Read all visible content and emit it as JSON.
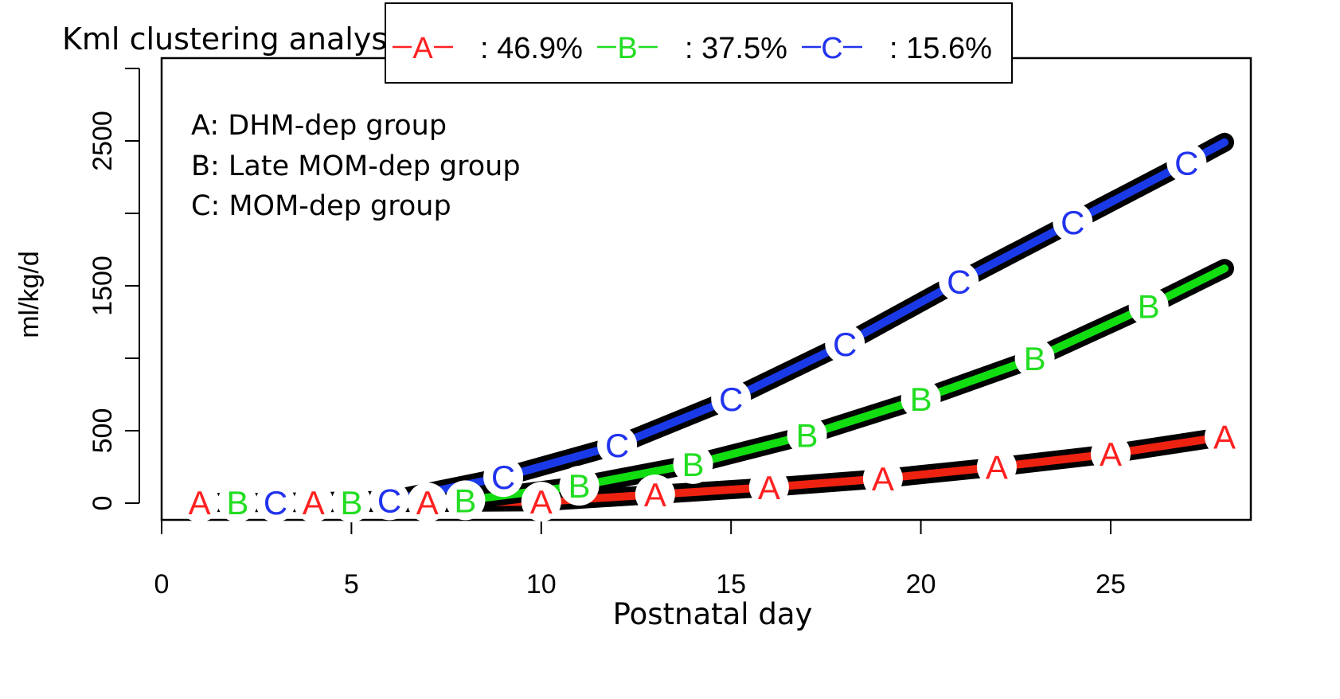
{
  "chart_data": {
    "type": "line",
    "title": "Kml clustering analysis",
    "xlabel": "Postnatal day",
    "ylabel": "ml/kg/d",
    "xlim": [
      0,
      28
    ],
    "ylim": [
      0,
      3000
    ],
    "xticks": [
      0,
      5,
      10,
      15,
      20,
      25
    ],
    "yticks": [
      0,
      500,
      1000,
      1500,
      2000,
      2500,
      3000
    ],
    "ytick_labels": [
      "0",
      "500",
      "",
      "1500",
      "",
      "2500",
      ""
    ],
    "grid": false,
    "annotations": [
      "A: DHM-dep group",
      "B: Late MOM-dep group",
      "C: MOM-dep group"
    ],
    "legend": {
      "placement": "top",
      "entries": [
        {
          "symbol": "A",
          "label": ": 46.9%",
          "color": "#ff2020"
        },
        {
          "symbol": "B",
          "label": ": 37.5%",
          "color": "#22dd22"
        },
        {
          "symbol": "C",
          "label": ": 15.6%",
          "color": "#2233ee"
        }
      ]
    },
    "series": [
      {
        "name": "A",
        "color": "#ff2020",
        "line_color": "#ee2211",
        "x": [
          1,
          4,
          7,
          10,
          13,
          16,
          19,
          22,
          25,
          28
        ],
        "y": [
          5,
          5,
          5,
          10,
          60,
          110,
          170,
          250,
          340,
          460
        ]
      },
      {
        "name": "B",
        "color": "#22dd22",
        "line_color": "#11dd11",
        "x": [
          2,
          5,
          8,
          11,
          14,
          17,
          20,
          23,
          26,
          28
        ],
        "y": [
          5,
          5,
          20,
          120,
          270,
          470,
          720,
          1000,
          1360,
          1620
        ]
      },
      {
        "name": "C",
        "color": "#2233ee",
        "line_color": "#1a3ae8",
        "x": [
          3,
          6,
          9,
          12,
          15,
          18,
          21,
          24,
          27,
          28
        ],
        "y": [
          5,
          20,
          180,
          400,
          720,
          1100,
          1530,
          1940,
          2350,
          2490
        ]
      }
    ]
  }
}
